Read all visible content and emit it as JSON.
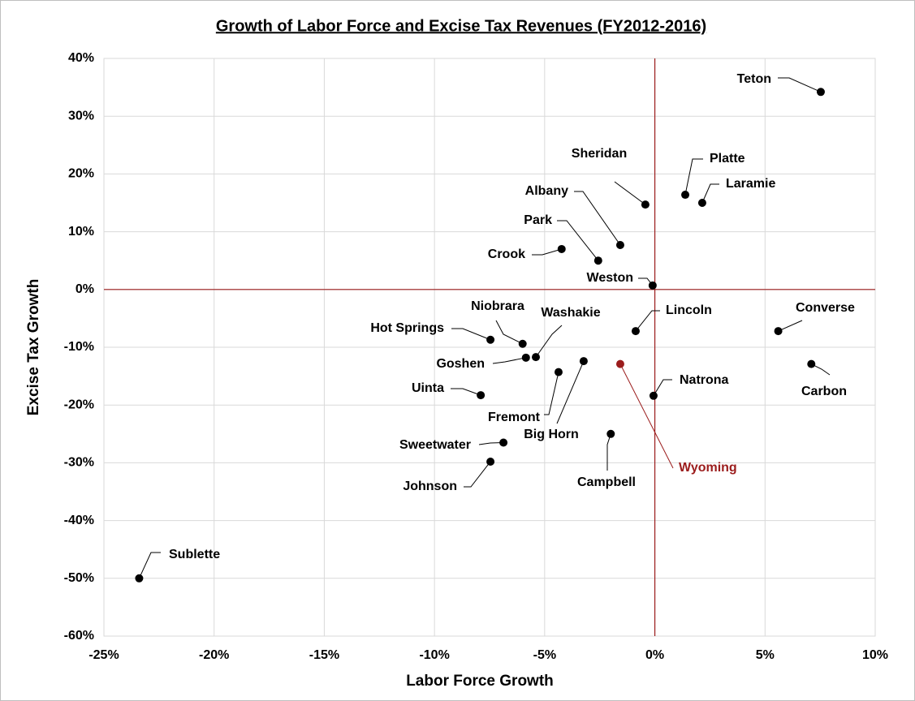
{
  "chart_data": {
    "type": "scatter",
    "title": "Growth of Labor Force and Excise Tax Revenues (FY2012-2016)",
    "x_label": "Labor Force Growth",
    "y_label": "Excise Tax Growth",
    "xlim": [
      -25,
      10
    ],
    "ylim": [
      -60,
      40
    ],
    "xticks": [
      {
        "value": -25,
        "label": "-25%"
      },
      {
        "value": -20,
        "label": "-20%"
      },
      {
        "value": -15,
        "label": "-15%"
      },
      {
        "value": -10,
        "label": "-10%"
      },
      {
        "value": -5,
        "label": "-5%"
      },
      {
        "value": 0,
        "label": "0%"
      },
      {
        "value": 5,
        "label": "5%"
      },
      {
        "value": 10,
        "label": "10%"
      }
    ],
    "yticks": [
      {
        "value": -60,
        "label": "-60%"
      },
      {
        "value": -50,
        "label": "-50%"
      },
      {
        "value": -40,
        "label": "-40%"
      },
      {
        "value": -30,
        "label": "-30%"
      },
      {
        "value": -20,
        "label": "-20%"
      },
      {
        "value": -10,
        "label": "-10%"
      },
      {
        "value": 0,
        "label": "0%"
      },
      {
        "value": 10,
        "label": "10%"
      },
      {
        "value": 20,
        "label": "20%"
      },
      {
        "value": 30,
        "label": "30%"
      },
      {
        "value": 40,
        "label": "40%"
      }
    ],
    "grid": true,
    "reference_lines": {
      "x": 0,
      "y": 0,
      "color": "#9b1c1c"
    },
    "points": [
      {
        "label": "Teton",
        "x": 7.53,
        "y": 34.2,
        "color": "#000000"
      },
      {
        "label": "Platte",
        "x": 1.38,
        "y": 16.4,
        "color": "#000000"
      },
      {
        "label": "Laramie",
        "x": 2.15,
        "y": 15.0,
        "color": "#000000"
      },
      {
        "label": "Sheridan",
        "x": -0.43,
        "y": 14.7,
        "color": "#000000"
      },
      {
        "label": "Albany",
        "x": -1.57,
        "y": 7.7,
        "color": "#000000"
      },
      {
        "label": "Park",
        "x": -2.57,
        "y": 5.0,
        "color": "#000000"
      },
      {
        "label": "Crook",
        "x": -4.23,
        "y": 7.0,
        "color": "#000000"
      },
      {
        "label": "Weston",
        "x": -0.1,
        "y": 0.7,
        "color": "#000000"
      },
      {
        "label": "Lincoln",
        "x": -0.87,
        "y": -7.2,
        "color": "#000000"
      },
      {
        "label": "Converse",
        "x": 5.6,
        "y": -7.2,
        "color": "#000000"
      },
      {
        "label": "Carbon",
        "x": 7.1,
        "y": -12.9,
        "color": "#000000"
      },
      {
        "label": "Niobrara",
        "x": -6.0,
        "y": -9.4,
        "color": "#000000"
      },
      {
        "label": "Hot Springs",
        "x": -7.46,
        "y": -8.7,
        "color": "#000000"
      },
      {
        "label": "Washakie",
        "x": -5.4,
        "y": -11.7,
        "color": "#000000"
      },
      {
        "label": "Goshen",
        "x": -5.85,
        "y": -11.8,
        "color": "#000000"
      },
      {
        "label": "Big Horn",
        "x": -3.23,
        "y": -12.4,
        "color": "#000000"
      },
      {
        "label": "Wyoming",
        "x": -1.57,
        "y": -12.9,
        "color": "#9b1c1c"
      },
      {
        "label": "Fremont",
        "x": -4.37,
        "y": -14.3,
        "color": "#000000"
      },
      {
        "label": "Natrona",
        "x": -0.06,
        "y": -18.4,
        "color": "#000000"
      },
      {
        "label": "Uinta",
        "x": -7.9,
        "y": -18.3,
        "color": "#000000"
      },
      {
        "label": "Campbell",
        "x": -2.0,
        "y": -25.0,
        "color": "#000000"
      },
      {
        "label": "Sweetwater",
        "x": -6.87,
        "y": -26.5,
        "color": "#000000"
      },
      {
        "label": "Johnson",
        "x": -7.46,
        "y": -29.8,
        "color": "#000000"
      },
      {
        "label": "Sublette",
        "x": -23.4,
        "y": -50.0,
        "color": "#000000"
      }
    ]
  }
}
